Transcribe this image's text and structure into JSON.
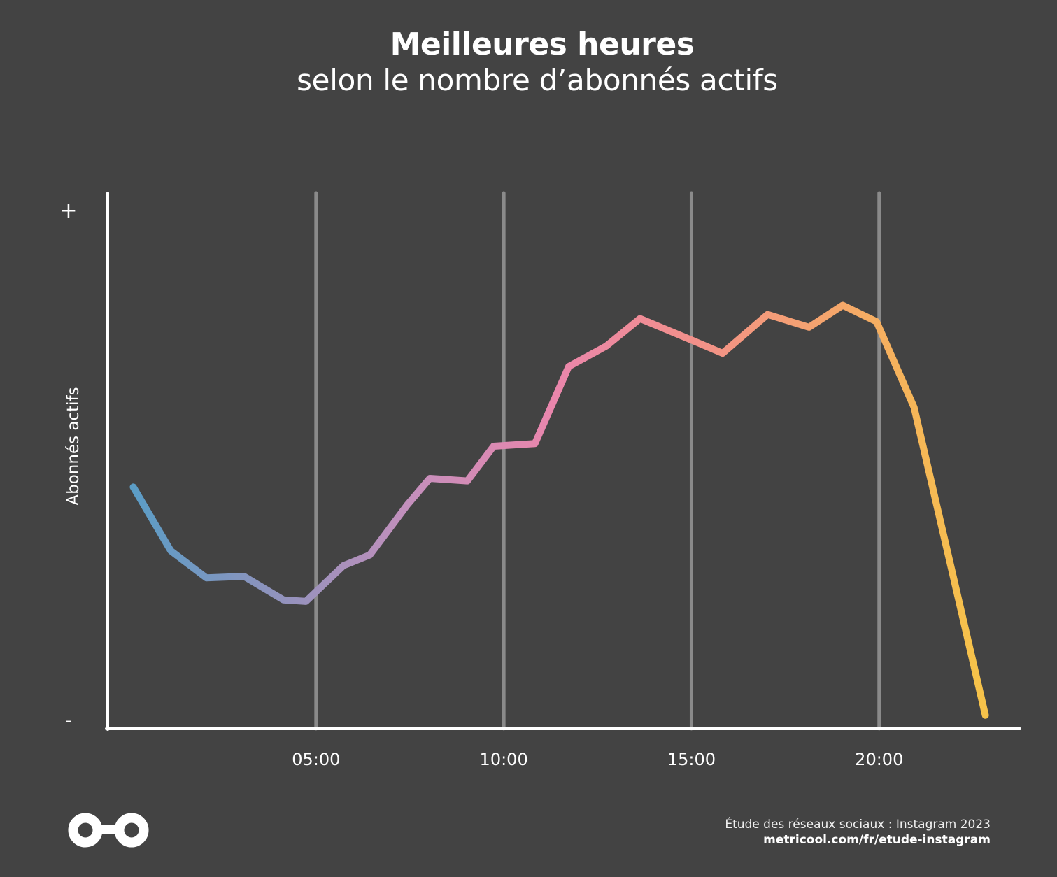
{
  "header": {
    "title": "Meilleures heures",
    "subtitle": "selon le nombre d’abonnés actifs"
  },
  "chart_data": {
    "type": "line",
    "title": "Meilleures heures",
    "subtitle": "selon le nombre d’abonnés actifs",
    "ylabel": "Abonnés actifs",
    "y_tick_labels": {
      "max": "+",
      "min": "-"
    },
    "x_ticks": [
      {
        "value": 5,
        "label": "05:00"
      },
      {
        "value": 10,
        "label": "10:00"
      },
      {
        "value": 15,
        "label": "15:00"
      },
      {
        "value": 20,
        "label": "20:00"
      }
    ],
    "xlim": [
      -0.55,
      23.75
    ],
    "ylim": [
      0,
      100
    ],
    "grid": "vertical at major ticks",
    "series": [
      {
        "x": [
          0.13,
          1.13,
          2.08,
          3.08,
          4.13,
          4.73,
          5.73,
          6.43,
          7.43,
          8.03,
          9.03,
          9.73,
          10.83,
          11.73,
          12.73,
          13.63,
          15.03,
          15.83,
          17.03,
          18.13,
          19.03,
          19.93,
          20.93,
          22.83
        ],
        "values": [
          45.7,
          33.2,
          27.9,
          28.2,
          23.6,
          23.3,
          30.3,
          32.4,
          42.2,
          47.4,
          46.9,
          53.7,
          54.2,
          69.3,
          73.3,
          78.7,
          74.4,
          71.9,
          79.5,
          77.0,
          81.3,
          78.1,
          61.3,
          1
        ]
      }
    ],
    "line_gradient": [
      "#5b9dc6",
      "#8f93bd",
      "#c58fbc",
      "#ea86ac",
      "#f2908a",
      "#f5a66b",
      "#f6c24a"
    ]
  },
  "footer": {
    "study": "Étude des réseaux sociaux : Instagram 2023",
    "url": "metricool.com/fr/etude-instagram"
  },
  "logo": {
    "icon": "metricool-logo-icon"
  }
}
